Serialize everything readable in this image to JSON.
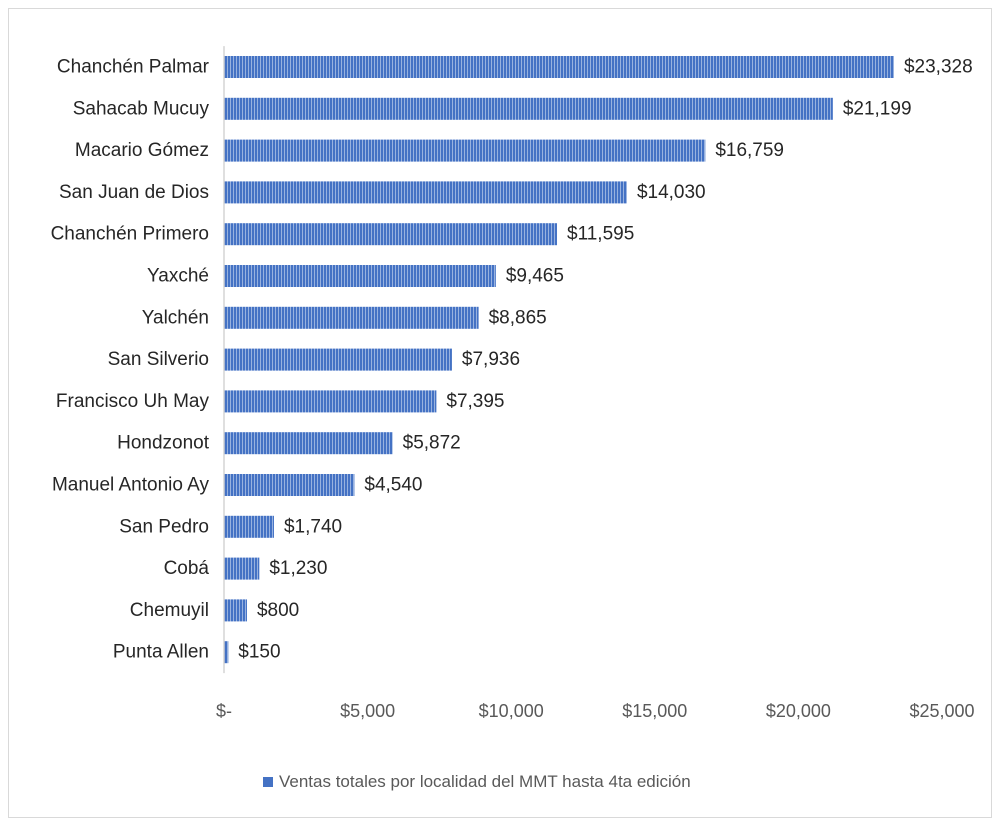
{
  "colors": {
    "bar": "#4472C4",
    "bar_stripe": "#ffffff",
    "axis": "#bfbfbf",
    "text": "#262626",
    "muted": "#595959"
  },
  "chart_data": {
    "type": "bar",
    "orientation": "horizontal",
    "categories": [
      "Chanchén Palmar",
      "Sahacab Mucuy",
      "Macario Gómez",
      "San Juan de Dios",
      "Chanchén Primero",
      "Yaxché",
      "Yalchén",
      "San Silverio",
      "Francisco Uh May",
      "Hondzonot",
      "Manuel Antonio Ay",
      "San Pedro",
      "Cobá",
      "Chemuyil",
      "Punta Allen"
    ],
    "values": [
      23328,
      21199,
      16759,
      14030,
      11595,
      9465,
      8865,
      7936,
      7395,
      5872,
      4540,
      1740,
      1230,
      800,
      150
    ],
    "data_labels": [
      "$23,328",
      "$21,199",
      "$16,759",
      "$14,030",
      "$11,595",
      "$9,465",
      "$8,865",
      "$7,936",
      "$7,395",
      "$5,872",
      "$4,540",
      "$1,740",
      "$1,230",
      "$800",
      "$150"
    ],
    "series": [
      {
        "name": "Ventas totales por localidad del MMT hasta 4ta edición",
        "values": [
          23328,
          21199,
          16759,
          14030,
          11595,
          9465,
          8865,
          7936,
          7395,
          5872,
          4540,
          1740,
          1230,
          800,
          150
        ]
      }
    ],
    "xlim": [
      0,
      25000
    ],
    "x_ticks": [
      0,
      5000,
      10000,
      15000,
      20000,
      25000
    ],
    "x_tick_labels": [
      "$-",
      "$5,000",
      "$10,000",
      "$15,000",
      "$20,000",
      "$25,000"
    ],
    "title": "",
    "xlabel": "",
    "ylabel": "",
    "grid": false,
    "legend_position": "bottom",
    "legend": [
      "Ventas totales por localidad del MMT hasta 4ta edición"
    ]
  }
}
